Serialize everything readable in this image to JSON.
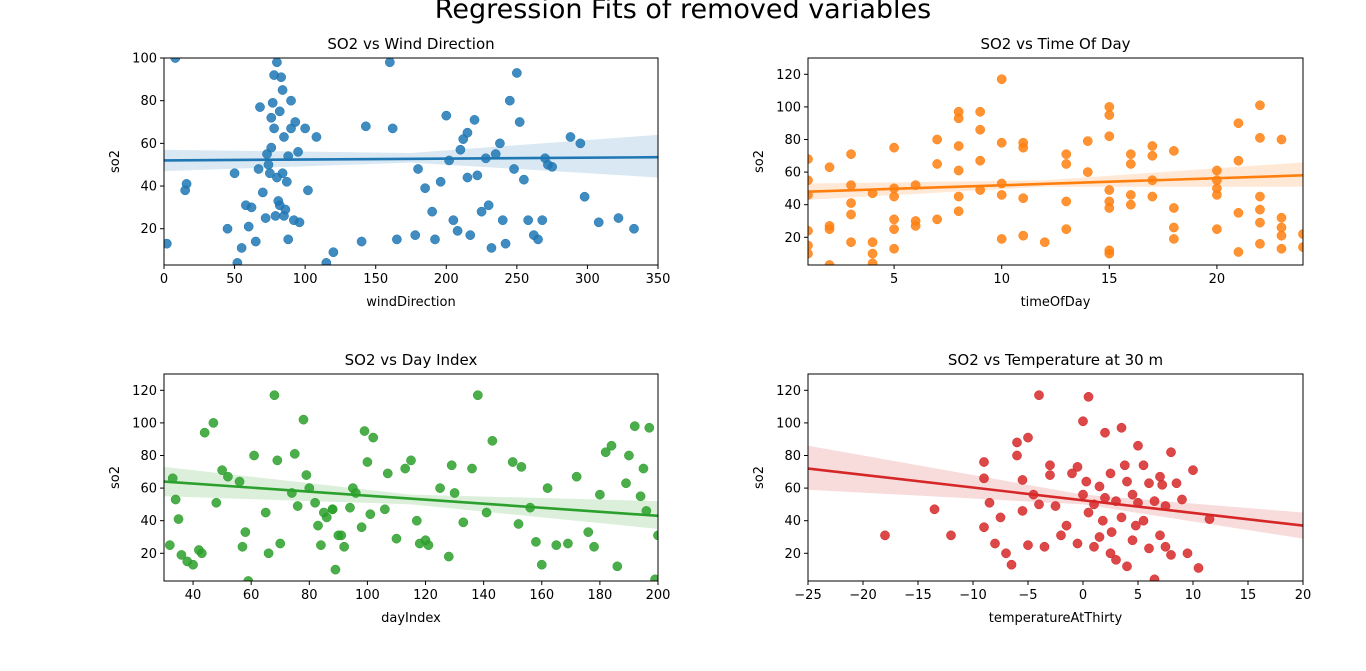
{
  "figure": {
    "suptitle": "Regression Fits of removed variables"
  },
  "chart_data": [
    {
      "type": "scatter",
      "title": "SO2 vs Wind Direction",
      "xlabel": "windDirection",
      "ylabel": "so2",
      "xlim": [
        0,
        350
      ],
      "ylim": [
        3,
        100
      ],
      "xticks": [
        0,
        50,
        100,
        150,
        200,
        250,
        300,
        350
      ],
      "yticks": [
        20,
        40,
        60,
        80,
        100
      ],
      "color": "#1f77b4",
      "regression": {
        "x": [
          0,
          350
        ],
        "y": [
          52,
          53.5
        ]
      },
      "ci_band": {
        "x": [
          0,
          175,
          350
        ],
        "upper": [
          57,
          55.5,
          64
        ],
        "lower": [
          47,
          51,
          44
        ]
      },
      "x": [
        8,
        2,
        16,
        15,
        45,
        50,
        52,
        55,
        60,
        62,
        65,
        68,
        70,
        72,
        74,
        75,
        76,
        77,
        78,
        78,
        79,
        80,
        80,
        81,
        82,
        82,
        83,
        84,
        85,
        85,
        86,
        88,
        88,
        90,
        90,
        92,
        95,
        96,
        100,
        108,
        115,
        120,
        143,
        160,
        162,
        165,
        178,
        185,
        190,
        192,
        196,
        200,
        202,
        205,
        208,
        210,
        212,
        215,
        217,
        220,
        222,
        225,
        228,
        230,
        232,
        235,
        238,
        240,
        245,
        248,
        250,
        252,
        255,
        258,
        262,
        265,
        270,
        272,
        275,
        288,
        295,
        298,
        308,
        322,
        333,
        58,
        67,
        73,
        87,
        93,
        140,
        180,
        215,
        242,
        268,
        102,
        76,
        84
      ],
      "y": [
        100,
        13,
        41,
        38,
        20,
        46,
        4,
        11,
        21,
        30,
        14,
        77,
        37,
        25,
        50,
        46,
        72,
        79,
        67,
        92,
        26,
        44,
        98,
        33,
        75,
        31,
        91,
        85,
        26,
        63,
        29,
        54,
        15,
        80,
        67,
        24,
        56,
        23,
        67,
        63,
        4,
        9,
        68,
        98,
        67,
        15,
        17,
        39,
        28,
        15,
        42,
        73,
        52,
        24,
        19,
        57,
        62,
        65,
        17,
        71,
        45,
        28,
        53,
        31,
        11,
        55,
        60,
        24,
        80,
        48,
        93,
        70,
        43,
        24,
        17,
        15,
        53,
        50,
        49,
        63,
        60,
        35,
        23,
        25,
        20,
        31,
        48,
        55,
        42,
        70,
        14,
        48,
        44,
        13,
        24,
        38,
        58,
        46
      ]
    },
    {
      "type": "scatter",
      "title": "SO2 vs Time Of Day",
      "xlabel": "timeOfDay",
      "ylabel": "so2",
      "xlim": [
        1,
        24
      ],
      "ylim": [
        3,
        130
      ],
      "xticks": [
        5,
        10,
        15,
        20
      ],
      "yticks": [
        20,
        40,
        60,
        80,
        100,
        120
      ],
      "color": "#ff7f0e",
      "regression": {
        "x": [
          1,
          24
        ],
        "y": [
          48,
          58
        ]
      },
      "ci_band": {
        "x": [
          1,
          12,
          24
        ],
        "upper": [
          53,
          55,
          66
        ],
        "lower": [
          43,
          51,
          51
        ]
      },
      "x": [
        1,
        1,
        1,
        1,
        1,
        1,
        2,
        2,
        2,
        2,
        3,
        3,
        3,
        3,
        3,
        4,
        4,
        4,
        4,
        5,
        5,
        5,
        5,
        5,
        5,
        6,
        6,
        6,
        7,
        7,
        7,
        8,
        8,
        8,
        8,
        8,
        8,
        9,
        9,
        9,
        9,
        10,
        10,
        10,
        10,
        10,
        11,
        11,
        11,
        11,
        12,
        13,
        13,
        13,
        13,
        14,
        14,
        15,
        15,
        15,
        15,
        15,
        15,
        15,
        15,
        16,
        16,
        16,
        16,
        17,
        17,
        17,
        17,
        18,
        18,
        18,
        18,
        20,
        20,
        20,
        20,
        20,
        21,
        21,
        21,
        21,
        22,
        22,
        22,
        22,
        22,
        22,
        23,
        23,
        23,
        23,
        23,
        24,
        24
      ],
      "y": [
        68,
        55,
        46,
        24,
        15,
        10,
        63,
        27,
        25,
        3,
        71,
        52,
        41,
        34,
        17,
        47,
        17,
        10,
        4,
        75,
        50,
        45,
        31,
        25,
        13,
        52,
        30,
        27,
        80,
        65,
        31,
        97,
        93,
        76,
        61,
        45,
        36,
        97,
        86,
        67,
        49,
        117,
        78,
        53,
        46,
        19,
        78,
        75,
        44,
        21,
        17,
        71,
        65,
        42,
        25,
        79,
        60,
        100,
        95,
        82,
        49,
        42,
        38,
        12,
        10,
        71,
        65,
        46,
        40,
        76,
        70,
        55,
        45,
        73,
        38,
        26,
        19,
        61,
        55,
        50,
        46,
        25,
        90,
        67,
        35,
        11,
        101,
        81,
        45,
        37,
        29,
        16,
        80,
        32,
        26,
        21,
        13,
        22,
        14
      ]
    },
    {
      "type": "scatter",
      "title": "SO2 vs Day Index",
      "xlabel": "dayIndex",
      "ylabel": "so2",
      "xlim": [
        30,
        200
      ],
      "ylim": [
        3,
        130
      ],
      "xticks": [
        40,
        60,
        80,
        100,
        120,
        140,
        160,
        180,
        200
      ],
      "yticks": [
        20,
        40,
        60,
        80,
        100,
        120
      ],
      "color": "#2ca02c",
      "regression": {
        "x": [
          30,
          200
        ],
        "y": [
          64,
          43
        ]
      },
      "ci_band": {
        "x": [
          30,
          115,
          200
        ],
        "upper": [
          73,
          56,
          52
        ],
        "lower": [
          55,
          50,
          35
        ]
      },
      "x": [
        32,
        33,
        34,
        35,
        36,
        38,
        40,
        42,
        43,
        44,
        47,
        48,
        50,
        52,
        56,
        57,
        58,
        59,
        65,
        66,
        68,
        69,
        70,
        74,
        75,
        76,
        78,
        79,
        80,
        82,
        83,
        84,
        85,
        86,
        88,
        89,
        90,
        91,
        92,
        94,
        95,
        96,
        98,
        99,
        100,
        101,
        102,
        107,
        110,
        113,
        115,
        117,
        118,
        120,
        121,
        125,
        128,
        129,
        130,
        133,
        136,
        138,
        141,
        143,
        150,
        152,
        153,
        156,
        158,
        160,
        162,
        165,
        169,
        172,
        176,
        178,
        180,
        182,
        184,
        186,
        189,
        190,
        192,
        194,
        195,
        196,
        197,
        199,
        200,
        88,
        61,
        106
      ],
      "y": [
        25,
        66,
        53,
        41,
        19,
        15,
        13,
        22,
        20,
        94,
        100,
        51,
        71,
        67,
        64,
        24,
        33,
        3,
        45,
        20,
        117,
        77,
        26,
        57,
        81,
        49,
        102,
        68,
        60,
        51,
        37,
        25,
        45,
        42,
        47,
        10,
        31,
        31,
        24,
        48,
        60,
        57,
        36,
        95,
        76,
        44,
        91,
        69,
        29,
        72,
        77,
        40,
        26,
        28,
        25,
        60,
        18,
        74,
        57,
        39,
        72,
        117,
        45,
        89,
        76,
        38,
        73,
        48,
        27,
        13,
        60,
        25,
        26,
        67,
        33,
        24,
        56,
        82,
        86,
        12,
        63,
        80,
        98,
        55,
        72,
        46,
        97,
        4,
        31,
        47,
        80,
        47
      ]
    },
    {
      "type": "scatter",
      "title": "SO2 vs Temperature at 30 m",
      "xlabel": "temperatureAtThirty",
      "ylabel": "so2",
      "xlim": [
        -25,
        20
      ],
      "ylim": [
        3,
        130
      ],
      "xticks": [
        -25,
        -20,
        -15,
        -10,
        -5,
        0,
        5,
        10,
        15,
        20
      ],
      "yticks": [
        20,
        40,
        60,
        80,
        100,
        120
      ],
      "color": "#d62728",
      "regression": {
        "x": [
          -25,
          20
        ],
        "y": [
          72,
          37
        ]
      },
      "ci_band": {
        "x": [
          -25,
          0,
          20
        ],
        "upper": [
          86,
          56,
          45
        ],
        "lower": [
          59,
          50,
          29
        ]
      },
      "x": [
        -18,
        -13.5,
        -12,
        -9,
        -9,
        -8.5,
        -8,
        -7.5,
        -7,
        -6.5,
        -6,
        -5.5,
        -5,
        -5,
        -4.5,
        -4,
        -4,
        -3.5,
        -3,
        -2.5,
        -2,
        -1.5,
        -1,
        -0.5,
        -0.5,
        0,
        0,
        0.5,
        0.5,
        1,
        1,
        1.5,
        1.5,
        2,
        2,
        2.5,
        2.5,
        3,
        3,
        3.5,
        3.5,
        4,
        4,
        4.5,
        4.5,
        5,
        5,
        5.5,
        5.5,
        6,
        6,
        6.5,
        6.5,
        7,
        7,
        7.5,
        7.5,
        8,
        8,
        8.5,
        9,
        9.5,
        10,
        10.5,
        11.5,
        -6,
        -9,
        -3,
        1.8,
        3.8,
        -5.5,
        0.3,
        2.6,
        4.8,
        7.2
      ],
      "y": [
        31,
        47,
        31,
        66,
        36,
        51,
        26,
        42,
        20,
        13,
        80,
        65,
        91,
        25,
        56,
        50,
        117,
        24,
        74,
        49,
        31,
        37,
        69,
        73,
        26,
        101,
        56,
        116,
        45,
        50,
        24,
        61,
        30,
        94,
        54,
        69,
        20,
        52,
        16,
        97,
        42,
        64,
        12,
        56,
        28,
        86,
        51,
        74,
        40,
        63,
        23,
        52,
        4,
        67,
        31,
        49,
        24,
        82,
        19,
        63,
        53,
        20,
        71,
        11,
        41,
        88,
        76,
        68,
        40,
        74,
        46,
        64,
        33,
        37,
        62
      ]
    }
  ]
}
